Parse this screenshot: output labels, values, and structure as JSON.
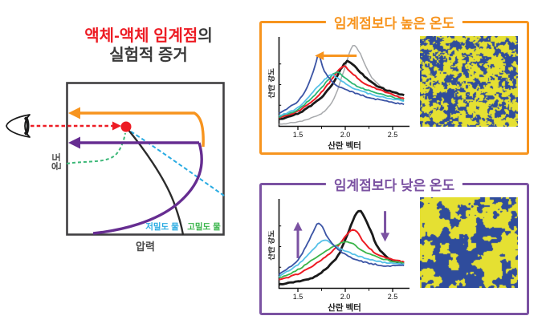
{
  "figure": {
    "main_title": {
      "highlight": "액체-액체 임계점",
      "suffix": "의",
      "line2": "실험적 증거"
    },
    "phase_diagram": {
      "ylabel": "온도",
      "xlabel": "압력",
      "low_density_label": "저밀도 물",
      "high_density_label": "고밀도 물"
    },
    "high_temp_box": {
      "title": "임계점보다 높은 온도",
      "accent": "#F7941E"
    },
    "low_temp_box": {
      "title": "임계점보다 낮은 온도",
      "accent": "#7B52A2"
    }
  },
  "palette": {
    "title_red": "#ED1C24",
    "dark_text": "#3A3A3A",
    "orange": "#F7941E",
    "purple_arrow": "#662D91",
    "purple_box": "#7B52A2",
    "cyan_line": "#29ABE2",
    "green_line": "#3CB878",
    "diagram_border": "#414042",
    "speckle_yellow": "#E5E032",
    "speckle_blue": "#2F4C9C"
  },
  "chart_data": [
    {
      "id": "high_temp_scattering",
      "type": "line",
      "title": "임계점보다 높은 온도",
      "xlabel": "산란 벡터",
      "ylabel": "산란 강도",
      "xlim": [
        1.3,
        2.62
      ],
      "ylim": [
        0,
        1
      ],
      "xticks": [
        1.5,
        2.0,
        2.5
      ],
      "xticks_minor": [
        1.75,
        2.25
      ],
      "grid": false,
      "legend": "none",
      "series": [
        {
          "name": "gray",
          "color": "#A7A9AC",
          "width": 1.5,
          "points": [
            [
              1.3,
              0.02
            ],
            [
              1.5,
              0.05
            ],
            [
              1.7,
              0.12
            ],
            [
              1.8,
              0.2
            ],
            [
              1.9,
              0.38
            ],
            [
              2.0,
              0.72
            ],
            [
              2.08,
              0.97
            ],
            [
              2.16,
              0.87
            ],
            [
              2.26,
              0.62
            ],
            [
              2.4,
              0.45
            ],
            [
              2.5,
              0.38
            ],
            [
              2.62,
              0.33
            ]
          ]
        },
        {
          "name": "black",
          "color": "#1A1A1A",
          "width": 2.8,
          "points": [
            [
              1.3,
              0.08
            ],
            [
              1.5,
              0.15
            ],
            [
              1.7,
              0.3
            ],
            [
              1.85,
              0.48
            ],
            [
              1.95,
              0.68
            ],
            [
              2.02,
              0.78
            ],
            [
              2.1,
              0.72
            ],
            [
              2.25,
              0.55
            ],
            [
              2.4,
              0.45
            ],
            [
              2.62,
              0.37
            ]
          ]
        },
        {
          "name": "red",
          "color": "#ED1C24",
          "width": 2.0,
          "points": [
            [
              1.3,
              0.1
            ],
            [
              1.5,
              0.18
            ],
            [
              1.7,
              0.35
            ],
            [
              1.85,
              0.55
            ],
            [
              1.97,
              0.72
            ],
            [
              2.05,
              0.66
            ],
            [
              2.2,
              0.52
            ],
            [
              2.4,
              0.42
            ],
            [
              2.62,
              0.33
            ]
          ]
        },
        {
          "name": "green",
          "color": "#2BB673",
          "width": 1.8,
          "points": [
            [
              1.3,
              0.11
            ],
            [
              1.5,
              0.2
            ],
            [
              1.7,
              0.4
            ],
            [
              1.83,
              0.57
            ],
            [
              1.91,
              0.65
            ],
            [
              2.0,
              0.58
            ],
            [
              2.15,
              0.47
            ],
            [
              2.4,
              0.38
            ],
            [
              2.62,
              0.31
            ]
          ]
        },
        {
          "name": "cyan",
          "color": "#56C1E8",
          "width": 1.8,
          "points": [
            [
              1.3,
              0.12
            ],
            [
              1.5,
              0.22
            ],
            [
              1.68,
              0.44
            ],
            [
              1.8,
              0.58
            ],
            [
              1.86,
              0.62
            ],
            [
              1.95,
              0.55
            ],
            [
              2.1,
              0.45
            ],
            [
              2.35,
              0.36
            ],
            [
              2.62,
              0.3
            ]
          ]
        },
        {
          "name": "blue",
          "color": "#3B54A5",
          "width": 1.8,
          "points": [
            [
              1.3,
              0.15
            ],
            [
              1.5,
              0.3
            ],
            [
              1.6,
              0.48
            ],
            [
              1.68,
              0.72
            ],
            [
              1.72,
              0.86
            ],
            [
              1.78,
              0.66
            ],
            [
              1.9,
              0.5
            ],
            [
              2.05,
              0.42
            ],
            [
              2.3,
              0.33
            ],
            [
              2.62,
              0.26
            ]
          ]
        }
      ],
      "arrows": [
        {
          "direction": "left",
          "color": "#F7941E",
          "y": 0.85,
          "x_from": 2.12,
          "x_to": 1.68
        }
      ]
    },
    {
      "id": "low_temp_scattering",
      "type": "line",
      "title": "임계점보다 낮은 온도",
      "xlabel": "산란 벡터",
      "ylabel": "산란 강도",
      "xlim": [
        1.3,
        2.62
      ],
      "ylim": [
        0,
        1
      ],
      "xticks": [
        1.5,
        2.0,
        2.5
      ],
      "xticks_minor": [
        1.75,
        2.25
      ],
      "grid": false,
      "legend": "none",
      "series": [
        {
          "name": "black",
          "color": "#1A1A1A",
          "width": 2.8,
          "points": [
            [
              1.3,
              0.04
            ],
            [
              1.5,
              0.08
            ],
            [
              1.7,
              0.15
            ],
            [
              1.9,
              0.35
            ],
            [
              2.0,
              0.58
            ],
            [
              2.14,
              0.93
            ],
            [
              2.25,
              0.74
            ],
            [
              2.35,
              0.48
            ],
            [
              2.5,
              0.33
            ],
            [
              2.62,
              0.3
            ]
          ]
        },
        {
          "name": "red",
          "color": "#ED1C24",
          "width": 2.0,
          "points": [
            [
              1.3,
              0.1
            ],
            [
              1.5,
              0.17
            ],
            [
              1.7,
              0.3
            ],
            [
              1.9,
              0.48
            ],
            [
              2.08,
              0.7
            ],
            [
              2.2,
              0.55
            ],
            [
              2.35,
              0.4
            ],
            [
              2.62,
              0.31
            ]
          ]
        },
        {
          "name": "green",
          "color": "#3BB54A",
          "width": 1.8,
          "points": [
            [
              1.3,
              0.12
            ],
            [
              1.5,
              0.22
            ],
            [
              1.7,
              0.38
            ],
            [
              1.85,
              0.48
            ],
            [
              2.02,
              0.56
            ],
            [
              2.2,
              0.44
            ],
            [
              2.4,
              0.35
            ],
            [
              2.62,
              0.3
            ]
          ]
        },
        {
          "name": "cyan",
          "color": "#56C1E8",
          "width": 1.8,
          "points": [
            [
              1.3,
              0.14
            ],
            [
              1.5,
              0.28
            ],
            [
              1.65,
              0.45
            ],
            [
              1.77,
              0.58
            ],
            [
              1.9,
              0.5
            ],
            [
              2.1,
              0.4
            ],
            [
              2.35,
              0.32
            ],
            [
              2.62,
              0.29
            ]
          ]
        },
        {
          "name": "blue",
          "color": "#3B54A5",
          "width": 1.8,
          "points": [
            [
              1.3,
              0.16
            ],
            [
              1.5,
              0.34
            ],
            [
              1.62,
              0.58
            ],
            [
              1.72,
              0.78
            ],
            [
              1.82,
              0.6
            ],
            [
              1.95,
              0.44
            ],
            [
              2.15,
              0.33
            ],
            [
              2.4,
              0.27
            ],
            [
              2.62,
              0.27
            ]
          ]
        }
      ],
      "arrows": [
        {
          "direction": "up",
          "color": "#7B52A2",
          "x": 1.5,
          "y_from": 0.36,
          "y_to": 0.8
        },
        {
          "direction": "down",
          "color": "#7B52A2",
          "x": 2.42,
          "y_from": 0.93,
          "y_to": 0.56
        }
      ]
    },
    {
      "id": "phase_diagram",
      "type": "diagram",
      "xlabel": "압력",
      "ylabel": "온도",
      "labels": {
        "low_density": "저밀도 물",
        "high_density": "고밀도 물"
      },
      "elements": [
        "critical-point",
        "orange-path-arrow-left",
        "purple-path-arrow-left",
        "black-transition-curve",
        "cyan-dashed-low-density-line",
        "green-dashed-high-density-line",
        "eye-observer",
        "red-dashed-sightline"
      ]
    }
  ]
}
